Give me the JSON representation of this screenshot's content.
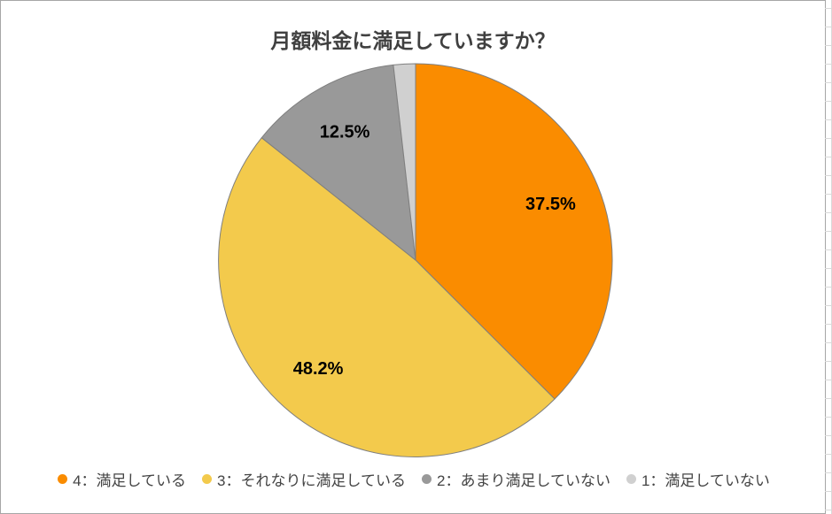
{
  "chart_data": {
    "type": "pie",
    "title": "月額料金に満足していますか？",
    "categories": [
      "4：満足している",
      "3：それなりに満足している",
      "2：あまり満足していない",
      "1：満足していない"
    ],
    "values": [
      37.5,
      48.2,
      12.5,
      1.8
    ],
    "slice_labels": [
      "37.5%",
      "48.2%",
      "12.5%",
      ""
    ],
    "colors": [
      "#FA8C00",
      "#F3CA4C",
      "#999999",
      "#D0D0D0"
    ],
    "stroke_color": "#7F7F7F",
    "label_color": "#000000",
    "title_color": "#404040",
    "legend_text_color": "#444444",
    "frame_border_color": "#A6A6A6",
    "start_angle_deg": 0,
    "direction": "clockwise",
    "legend_position": "bottom",
    "legend": [
      {
        "label": "4：満足している",
        "color": "#FA8C00"
      },
      {
        "label": "3：それなりに満足している",
        "color": "#F3CA4C"
      },
      {
        "label": "2：あまり満足していない",
        "color": "#999999"
      },
      {
        "label": "1：満足していない",
        "color": "#D0D0D0"
      }
    ]
  }
}
